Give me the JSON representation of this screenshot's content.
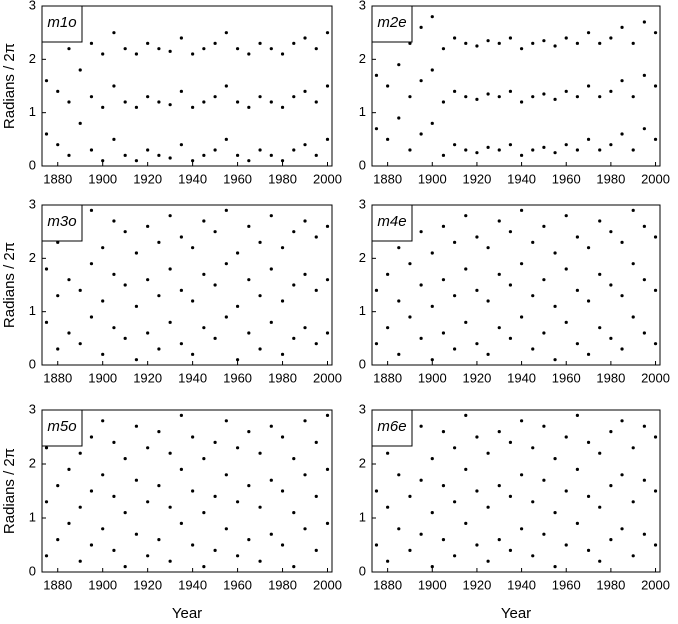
{
  "chart_data": [
    {
      "type": "scatter",
      "title": "m1o",
      "ylabel": "Radians / 2π",
      "x": [
        1875,
        1880,
        1885,
        1890,
        1895,
        1900,
        1905,
        1910,
        1915,
        1920,
        1925,
        1930,
        1935,
        1940,
        1945,
        1950,
        1955,
        1960,
        1965,
        1970,
        1975,
        1980,
        1985,
        1990,
        1995,
        2000
      ],
      "series": [
        {
          "values": [
            0.6,
            0.4,
            0.2,
            0.8,
            0.3,
            0.1,
            0.5,
            0.2,
            0.1,
            0.3,
            0.2,
            0.15,
            0.4,
            0.1,
            0.2,
            0.3,
            0.5,
            0.2,
            0.1,
            0.3,
            0.2,
            0.1,
            0.3,
            0.4,
            0.2,
            0.5
          ]
        },
        {
          "values": [
            1.6,
            1.4,
            1.2,
            1.8,
            1.3,
            1.1,
            1.5,
            1.2,
            1.1,
            1.3,
            1.2,
            1.15,
            1.4,
            1.1,
            1.2,
            1.3,
            1.5,
            1.2,
            1.1,
            1.3,
            1.2,
            1.1,
            1.3,
            1.4,
            1.2,
            1.5
          ]
        },
        {
          "values": [
            2.6,
            2.4,
            2.2,
            2.8,
            2.3,
            2.1,
            2.5,
            2.2,
            2.1,
            2.3,
            2.2,
            2.15,
            2.4,
            2.1,
            2.2,
            2.3,
            2.5,
            2.2,
            2.1,
            2.3,
            2.2,
            2.1,
            2.3,
            2.4,
            2.2,
            2.5
          ]
        }
      ],
      "color": "#000000",
      "xlim": [
        1873,
        2002
      ],
      "ylim": [
        0,
        3
      ],
      "xticks": [
        1880,
        1900,
        1920,
        1940,
        1960,
        1980,
        2000
      ],
      "yticks": [
        0,
        1,
        2,
        3
      ]
    },
    {
      "type": "scatter",
      "title": "m2e",
      "x": [
        1875,
        1880,
        1885,
        1890,
        1895,
        1900,
        1905,
        1910,
        1915,
        1920,
        1925,
        1930,
        1935,
        1940,
        1945,
        1950,
        1955,
        1960,
        1965,
        1970,
        1975,
        1980,
        1985,
        1990,
        1995,
        2000
      ],
      "series": [
        {
          "values": [
            0.7,
            0.5,
            0.9,
            0.3,
            0.6,
            0.8,
            0.2,
            0.4,
            0.3,
            0.25,
            0.35,
            0.3,
            0.4,
            0.2,
            0.3,
            0.35,
            0.25,
            0.4,
            0.3,
            0.5,
            0.3,
            0.4,
            0.6,
            0.3,
            0.7,
            0.5
          ]
        },
        {
          "values": [
            1.7,
            1.5,
            1.9,
            1.3,
            1.6,
            1.8,
            1.2,
            1.4,
            1.3,
            1.25,
            1.35,
            1.3,
            1.4,
            1.2,
            1.3,
            1.35,
            1.25,
            1.4,
            1.3,
            1.5,
            1.3,
            1.4,
            1.6,
            1.3,
            1.7,
            1.5
          ]
        },
        {
          "values": [
            2.7,
            2.5,
            2.9,
            2.3,
            2.6,
            2.8,
            2.2,
            2.4,
            2.3,
            2.25,
            2.35,
            2.3,
            2.4,
            2.2,
            2.3,
            2.35,
            2.25,
            2.4,
            2.3,
            2.5,
            2.3,
            2.4,
            2.6,
            2.3,
            2.7,
            2.5
          ]
        }
      ],
      "color": "#000000",
      "xlim": [
        1873,
        2002
      ],
      "ylim": [
        0,
        3
      ],
      "xticks": [
        1880,
        1900,
        1920,
        1940,
        1960,
        1980,
        2000
      ],
      "yticks": [
        0,
        1,
        2,
        3
      ]
    },
    {
      "type": "scatter",
      "title": "m3o",
      "ylabel": "Radians / 2π",
      "x": [
        1875,
        1880,
        1885,
        1890,
        1895,
        1900,
        1905,
        1910,
        1915,
        1920,
        1925,
        1930,
        1935,
        1940,
        1945,
        1950,
        1955,
        1960,
        1965,
        1970,
        1975,
        1980,
        1985,
        1990,
        1995,
        2000
      ],
      "series": [
        {
          "values": [
            0.8,
            0.3,
            0.6,
            0.4,
            0.9,
            0.2,
            0.7,
            0.5,
            0.1,
            0.6,
            0.3,
            0.8,
            0.4,
            0.2,
            0.7,
            0.5,
            0.9,
            0.1,
            0.6,
            0.3,
            0.8,
            0.2,
            0.5,
            0.7,
            0.4,
            0.6
          ]
        },
        {
          "values": [
            1.8,
            1.3,
            1.6,
            1.4,
            1.9,
            1.2,
            1.7,
            1.5,
            1.1,
            1.6,
            1.3,
            1.8,
            1.4,
            1.2,
            1.7,
            1.5,
            1.9,
            1.1,
            1.6,
            1.3,
            1.8,
            1.2,
            1.5,
            1.7,
            1.4,
            1.6
          ]
        },
        {
          "values": [
            2.8,
            2.3,
            2.6,
            2.4,
            2.9,
            2.2,
            2.7,
            2.5,
            2.1,
            2.6,
            2.3,
            2.8,
            2.4,
            2.2,
            2.7,
            2.5,
            2.9,
            2.1,
            2.6,
            2.3,
            2.8,
            2.2,
            2.5,
            2.7,
            2.4,
            2.6
          ]
        }
      ],
      "color": "#000000",
      "xlim": [
        1873,
        2002
      ],
      "ylim": [
        0,
        3
      ],
      "xticks": [
        1880,
        1900,
        1920,
        1940,
        1960,
        1980,
        2000
      ],
      "yticks": [
        0,
        1,
        2,
        3
      ]
    },
    {
      "type": "scatter",
      "title": "m4e",
      "x": [
        1875,
        1880,
        1885,
        1890,
        1895,
        1900,
        1905,
        1910,
        1915,
        1920,
        1925,
        1930,
        1935,
        1940,
        1945,
        1950,
        1955,
        1960,
        1965,
        1970,
        1975,
        1980,
        1985,
        1990,
        1995,
        2000
      ],
      "series": [
        {
          "values": [
            0.4,
            0.7,
            0.2,
            0.9,
            0.5,
            0.1,
            0.6,
            0.3,
            0.8,
            0.4,
            0.2,
            0.7,
            0.5,
            0.9,
            0.3,
            0.6,
            0.1,
            0.8,
            0.4,
            0.2,
            0.7,
            0.5,
            0.3,
            0.9,
            0.6,
            0.4
          ]
        },
        {
          "values": [
            1.4,
            1.7,
            1.2,
            1.9,
            1.5,
            1.1,
            1.6,
            1.3,
            1.8,
            1.4,
            1.2,
            1.7,
            1.5,
            1.9,
            1.3,
            1.6,
            1.1,
            1.8,
            1.4,
            1.2,
            1.7,
            1.5,
            1.3,
            1.9,
            1.6,
            1.4
          ]
        },
        {
          "values": [
            2.4,
            2.7,
            2.2,
            2.9,
            2.5,
            2.1,
            2.6,
            2.3,
            2.8,
            2.4,
            2.2,
            2.7,
            2.5,
            2.9,
            2.3,
            2.6,
            2.1,
            2.8,
            2.4,
            2.2,
            2.7,
            2.5,
            2.3,
            2.9,
            2.6,
            2.4
          ]
        }
      ],
      "color": "#000000",
      "xlim": [
        1873,
        2002
      ],
      "ylim": [
        0,
        3
      ],
      "xticks": [
        1880,
        1900,
        1920,
        1940,
        1960,
        1980,
        2000
      ],
      "yticks": [
        0,
        1,
        2,
        3
      ]
    },
    {
      "type": "scatter",
      "title": "m5o",
      "ylabel": "Radians / 2π",
      "xlabel": "Year",
      "x": [
        1875,
        1880,
        1885,
        1890,
        1895,
        1900,
        1905,
        1910,
        1915,
        1920,
        1925,
        1930,
        1935,
        1940,
        1945,
        1950,
        1955,
        1960,
        1965,
        1970,
        1975,
        1980,
        1985,
        1990,
        1995,
        2000
      ],
      "series": [
        {
          "values": [
            0.3,
            0.6,
            0.9,
            0.2,
            0.5,
            0.8,
            0.4,
            0.1,
            0.7,
            0.3,
            0.6,
            0.2,
            0.9,
            0.5,
            0.1,
            0.4,
            0.8,
            0.3,
            0.6,
            0.2,
            0.7,
            0.5,
            0.1,
            0.8,
            0.4,
            0.9
          ]
        },
        {
          "values": [
            1.3,
            1.6,
            1.9,
            1.2,
            1.5,
            1.8,
            1.4,
            1.1,
            1.7,
            1.3,
            1.6,
            1.2,
            1.9,
            1.5,
            1.1,
            1.4,
            1.8,
            1.3,
            1.6,
            1.2,
            1.7,
            1.5,
            1.1,
            1.8,
            1.4,
            1.9
          ]
        },
        {
          "values": [
            2.3,
            2.6,
            2.9,
            2.2,
            2.5,
            2.8,
            2.4,
            2.1,
            2.7,
            2.3,
            2.6,
            2.2,
            2.9,
            2.5,
            2.1,
            2.4,
            2.8,
            2.3,
            2.6,
            2.2,
            2.7,
            2.5,
            2.1,
            2.8,
            2.4,
            2.9
          ]
        }
      ],
      "color": "#000000",
      "xlim": [
        1873,
        2002
      ],
      "ylim": [
        0,
        3
      ],
      "xticks": [
        1880,
        1900,
        1920,
        1940,
        1960,
        1980,
        2000
      ],
      "yticks": [
        0,
        1,
        2,
        3
      ]
    },
    {
      "type": "scatter",
      "title": "m6e",
      "xlabel": "Year",
      "x": [
        1875,
        1880,
        1885,
        1890,
        1895,
        1900,
        1905,
        1910,
        1915,
        1920,
        1925,
        1930,
        1935,
        1940,
        1945,
        1950,
        1955,
        1960,
        1965,
        1970,
        1975,
        1980,
        1985,
        1990,
        1995,
        2000
      ],
      "series": [
        {
          "values": [
            0.5,
            0.2,
            0.8,
            0.4,
            0.7,
            0.1,
            0.6,
            0.3,
            0.9,
            0.5,
            0.2,
            0.6,
            0.4,
            0.8,
            0.3,
            0.7,
            0.1,
            0.5,
            0.9,
            0.4,
            0.2,
            0.6,
            0.8,
            0.3,
            0.7,
            0.5
          ]
        },
        {
          "values": [
            1.5,
            1.2,
            1.8,
            1.4,
            1.7,
            1.1,
            1.6,
            1.3,
            1.9,
            1.5,
            1.2,
            1.6,
            1.4,
            1.8,
            1.3,
            1.7,
            1.1,
            1.5,
            1.9,
            1.4,
            1.2,
            1.6,
            1.8,
            1.3,
            1.7,
            1.5
          ]
        },
        {
          "values": [
            2.5,
            2.2,
            2.8,
            2.4,
            2.7,
            2.1,
            2.6,
            2.3,
            2.9,
            2.5,
            2.2,
            2.6,
            2.4,
            2.8,
            2.3,
            2.7,
            2.1,
            2.5,
            2.9,
            2.4,
            2.2,
            2.6,
            2.8,
            2.3,
            2.7,
            2.5
          ]
        }
      ],
      "color": "#000000",
      "xlim": [
        1873,
        2002
      ],
      "ylim": [
        0,
        3
      ],
      "xticks": [
        1880,
        1900,
        1920,
        1940,
        1960,
        1980,
        2000
      ],
      "yticks": [
        0,
        1,
        2,
        3
      ]
    }
  ]
}
